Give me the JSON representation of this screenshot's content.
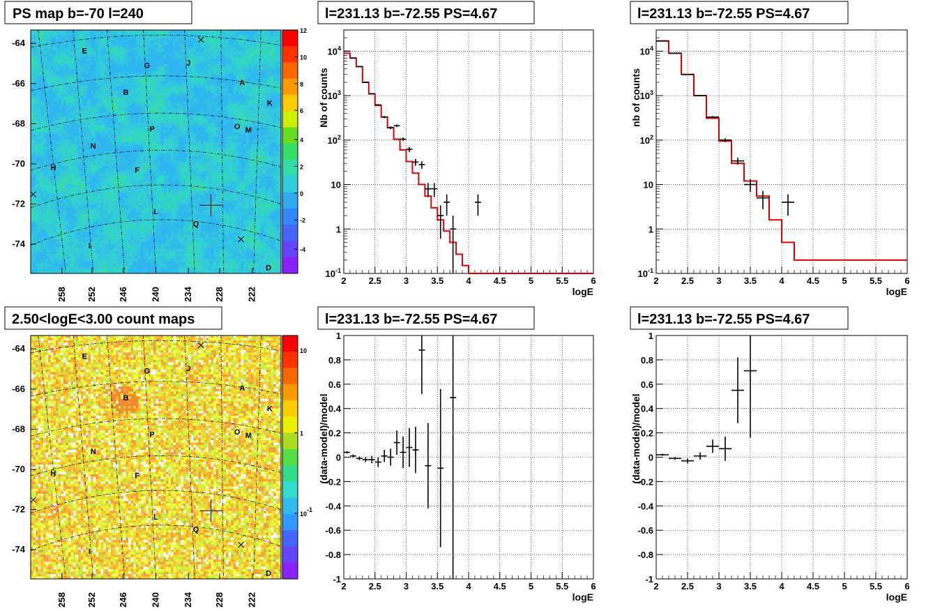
{
  "panels": {
    "map_top_title": "PS map b=-70 l=240",
    "map_bottom_title": "2.50<logE<3.00 count maps",
    "spec_title_1": "l=231.13 b=-72.55 PS=4.67",
    "spec_title_2": "l=231.13 b=-72.55 PS=4.67",
    "res_title_1": "l=231.13 b=-72.55 PS=4.67",
    "res_title_2": "l=231.13 b=-72.55 PS=4.67"
  },
  "axes": {
    "xlabel": "logE",
    "ylabel_spec_1": "Nb of counts",
    "ylabel_spec_2": "nb of counts",
    "ylabel_res": "(data-model)/model"
  },
  "maps": {
    "lat_ticks": [
      "-64",
      "-66",
      "-68",
      "-70",
      "-72",
      "-74"
    ],
    "lon_ticks": [
      "258",
      "252",
      "246",
      "240",
      "234",
      "228",
      "222"
    ],
    "sources": [
      "E",
      "G",
      "J",
      "A",
      "B",
      "K",
      "P",
      "O",
      "M",
      "N",
      "H",
      "F",
      "L",
      "Q",
      "I",
      "D"
    ],
    "colorbar_top_ticks": [
      "12",
      "10",
      "8",
      "6",
      "4",
      "2",
      "0",
      "-2",
      "-4"
    ],
    "colorbar_bottom_ticks": [
      "10",
      "1",
      "10-1"
    ]
  },
  "chart_data": [
    {
      "type": "line",
      "title": "l=231.13 b=-72.55 PS=4.67",
      "xlabel": "logE",
      "ylabel": "Nb of counts",
      "xlim": [
        2,
        6
      ],
      "ylim": [
        0.1,
        30000
      ],
      "yscale": "log",
      "grid": true,
      "x_ticks": [
        "2",
        "2.5",
        "3",
        "3.5",
        "4",
        "4.5",
        "5",
        "5.5",
        "6"
      ],
      "y_ticks": [
        "10-1",
        "1",
        "10",
        "102",
        "103",
        "104"
      ],
      "model_edges": [
        2,
        2.1,
        2.2,
        2.3,
        2.4,
        2.5,
        2.6,
        2.7,
        2.8,
        2.9,
        3,
        3.1,
        3.2,
        3.3,
        3.4,
        3.5,
        3.6,
        3.7,
        3.8,
        3.9,
        4,
        4.1,
        4.2,
        6
      ],
      "model_values": [
        9000,
        7000,
        4500,
        2000,
        1100,
        600,
        330,
        190,
        105,
        60,
        33,
        18,
        10,
        5.5,
        3,
        1.6,
        0.9,
        0.5,
        0.27,
        0.15,
        0.1,
        0.1,
        0.1
      ],
      "data_x": [
        2.05,
        2.15,
        2.25,
        2.35,
        2.45,
        2.55,
        2.65,
        2.75,
        2.85,
        2.95,
        3.05,
        3.15,
        3.25,
        3.35,
        3.45,
        3.55,
        3.65,
        3.75,
        4.15
      ],
      "data_y": [
        10000,
        7000,
        4500,
        2000,
        1100,
        620,
        330,
        190,
        210,
        105,
        62,
        32,
        28,
        8,
        8,
        2,
        4,
        1,
        4
      ],
      "data_err": [
        100,
        84,
        67,
        45,
        33,
        25,
        18,
        14,
        14,
        10,
        8,
        5.6,
        5.3,
        2.8,
        2.8,
        1.4,
        2,
        1,
        2
      ]
    },
    {
      "type": "line",
      "title": "l=231.13 b=-72.55 PS=4.67",
      "xlabel": "logE",
      "ylabel": "nb of counts",
      "xlim": [
        2,
        6
      ],
      "ylim": [
        0.1,
        30000
      ],
      "yscale": "log",
      "grid": true,
      "x_ticks": [
        "2",
        "2.5",
        "3",
        "3.5",
        "4",
        "4.5",
        "5",
        "5.5",
        "6"
      ],
      "y_ticks": [
        "10-1",
        "1",
        "10",
        "102",
        "103",
        "104"
      ],
      "model_edges": [
        2,
        2.2,
        2.4,
        2.6,
        2.8,
        3,
        3.2,
        3.4,
        3.6,
        3.8,
        4,
        4.2,
        6
      ],
      "model_values": [
        17000,
        9000,
        3000,
        1000,
        310,
        95,
        30,
        12,
        5.5,
        1.6,
        0.5,
        0.2,
        0.1
      ],
      "data_x": [
        2.1,
        2.3,
        2.5,
        2.7,
        2.9,
        3.1,
        3.3,
        3.5,
        3.7,
        4.1
      ],
      "data_y": [
        17000,
        9000,
        3000,
        1000,
        330,
        100,
        34,
        10,
        5,
        4
      ],
      "data_err": [
        130,
        95,
        55,
        32,
        18,
        10,
        5.8,
        3.2,
        2.2,
        2
      ]
    },
    {
      "type": "scatter",
      "title": "l=231.13 b=-72.55 PS=4.67",
      "xlabel": "logE",
      "ylabel": "(data-model)/model",
      "xlim": [
        2,
        6
      ],
      "ylim": [
        -1,
        1
      ],
      "grid": true,
      "x_ticks": [
        "2",
        "2.5",
        "3",
        "3.5",
        "4",
        "4.5",
        "5",
        "5.5",
        "6"
      ],
      "y_ticks": [
        "-1",
        "-0.8",
        "-0.6",
        "-0.4",
        "-0.2",
        "0",
        "0.2",
        "0.4",
        "0.6",
        "0.8",
        "1"
      ],
      "x": [
        2.05,
        2.15,
        2.25,
        2.35,
        2.45,
        2.55,
        2.65,
        2.75,
        2.85,
        2.95,
        3.05,
        3.15,
        3.25,
        3.35,
        3.55,
        3.75
      ],
      "y": [
        0.04,
        0.01,
        -0.01,
        -0.02,
        -0.02,
        -0.04,
        0.01,
        0.0,
        0.12,
        0.04,
        0.08,
        0.06,
        0.88,
        -0.07,
        -0.09,
        0.49
      ],
      "err": [
        0.01,
        0.012,
        0.015,
        0.02,
        0.03,
        0.04,
        0.05,
        0.07,
        0.1,
        0.13,
        0.16,
        0.19,
        0.36,
        0.35,
        0.65,
        1.5
      ]
    },
    {
      "type": "scatter",
      "title": "l=231.13 b=-72.55 PS=4.67",
      "xlabel": "logE",
      "ylabel": "(data-model)/model",
      "xlim": [
        2,
        6
      ],
      "ylim": [
        -1,
        1
      ],
      "grid": true,
      "x_ticks": [
        "2",
        "2.5",
        "3",
        "3.5",
        "4",
        "4.5",
        "5",
        "5.5",
        "6"
      ],
      "y_ticks": [
        "-1",
        "-0.8",
        "-0.6",
        "-0.4",
        "-0.2",
        "0",
        "0.2",
        "0.4",
        "0.6",
        "0.8",
        "1"
      ],
      "x": [
        2.1,
        2.3,
        2.5,
        2.7,
        2.9,
        3.1,
        3.3,
        3.5
      ],
      "y": [
        0.02,
        -0.01,
        -0.03,
        0.01,
        0.09,
        0.07,
        0.55,
        0.71
      ],
      "err": [
        0.008,
        0.011,
        0.02,
        0.03,
        0.055,
        0.1,
        0.27,
        0.55
      ]
    }
  ]
}
